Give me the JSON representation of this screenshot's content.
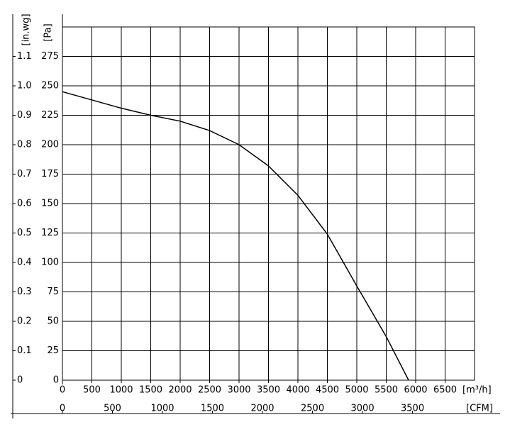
{
  "chart_data": {
    "type": "line",
    "y_label": "[Pa]",
    "y2_label": "[in.wg]",
    "x_label": "[m³/h]",
    "x2_label": "[CFM]",
    "x": [
      0,
      500,
      1000,
      1500,
      2000,
      2500,
      3000,
      3500,
      4000,
      4500,
      5000,
      5500,
      5880
    ],
    "series": [
      {
        "color": "#000000",
        "values": [
          245,
          238,
          231,
          225,
          220,
          212,
          200,
          182,
          157,
          124,
          80,
          37,
          0
        ]
      }
    ],
    "xlim": [
      0,
      7000
    ],
    "xticks": [
      0,
      500,
      1000,
      1500,
      2000,
      2500,
      3000,
      3500,
      4000,
      4500,
      5000,
      5500,
      6000,
      6500
    ],
    "ylim": [
      0,
      300
    ],
    "yticks": [
      0,
      25,
      50,
      75,
      100,
      125,
      150,
      175,
      200,
      225,
      250,
      275
    ],
    "y2lim": [
      0,
      1.2
    ],
    "y2ticks": [
      0,
      0.1,
      0.2,
      0.3,
      0.4,
      0.5,
      0.6,
      0.7,
      0.8,
      0.9,
      {
        "value": 1,
        "label": "1.0"
      },
      1.1
    ],
    "x2lim": [
      0,
      4120
    ],
    "x2ticks": [
      0,
      500,
      1000,
      1500,
      2000,
      2500,
      3000,
      3500
    ],
    "grid": true
  }
}
